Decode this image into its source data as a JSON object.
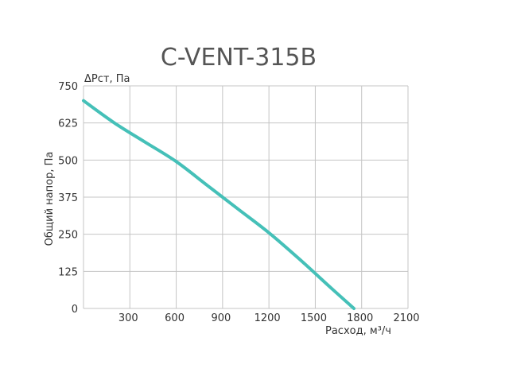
{
  "chart_data": {
    "type": "line",
    "title": "C-VENT-315B",
    "xlabel": "Расход, м³/ч",
    "ylabel": "Общий напор, Па",
    "y_unit_label": "ΔРст, Па",
    "xlim": [
      0,
      2100
    ],
    "ylim": [
      0,
      750
    ],
    "x_ticks": [
      300,
      600,
      900,
      1200,
      1500,
      1800,
      2100
    ],
    "y_ticks": [
      0,
      125,
      250,
      375,
      500,
      625,
      750
    ],
    "grid": true,
    "line_color": "#45c0b8",
    "series": [
      {
        "x": [
          0,
          200,
          400,
          600,
          800,
          1000,
          1200,
          1400,
          1600,
          1750
        ],
        "values": [
          700,
          625,
          560,
          495,
          415,
          335,
          255,
          165,
          70,
          0
        ]
      }
    ]
  }
}
